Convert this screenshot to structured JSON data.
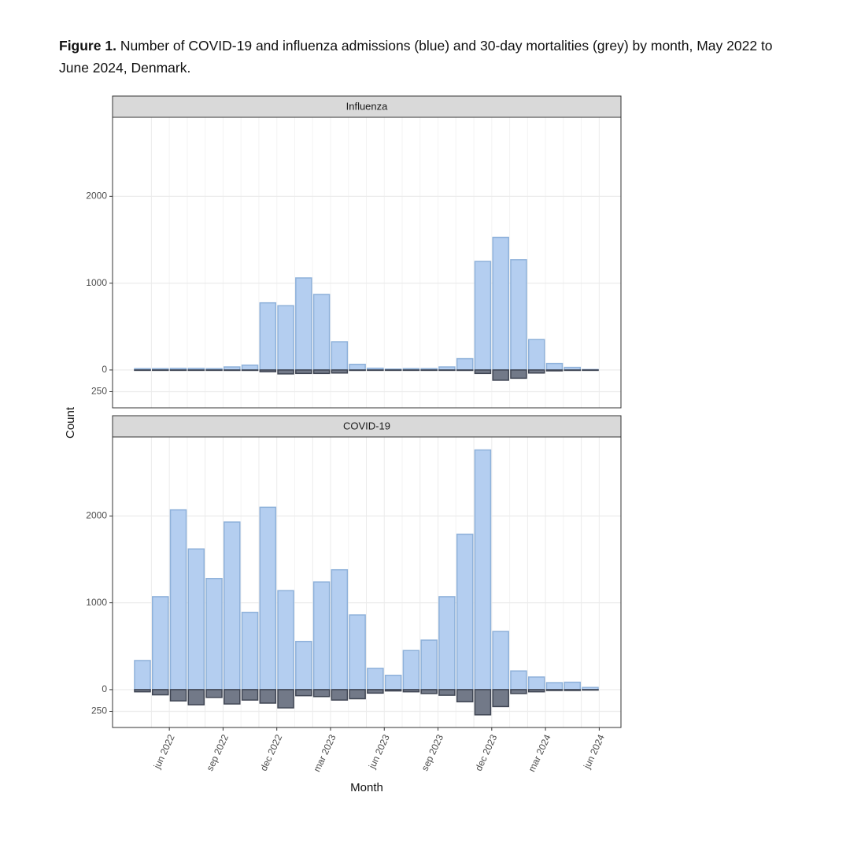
{
  "caption_label": "Figure 1.",
  "caption": "Number of COVID-19 and influenza admissions (blue) and 30-day mortalities (grey) by month, May 2022 to June 2024, Denmark.",
  "ylabel": "Count",
  "xlabel": "Month",
  "chart_data": [
    {
      "type": "bar",
      "title": "Influenza",
      "categories": [
        null,
        null,
        null,
        null,
        null,
        null,
        null,
        null,
        null,
        null,
        null,
        null,
        null,
        null,
        null,
        null,
        null,
        null,
        null,
        null,
        null,
        null,
        null,
        null,
        null,
        null
      ],
      "series": [
        {
          "color": "#b4cef0",
          "edgecolor": "#8eb1da",
          "values": [
            15,
            15,
            18,
            18,
            15,
            35,
            55,
            773,
            740,
            1060,
            870,
            325,
            65,
            20,
            10,
            15,
            15,
            35,
            130,
            1250,
            1527,
            1270,
            350,
            75,
            30,
            5
          ]
        },
        {
          "color": "#727988",
          "edgecolor": "#3f4553",
          "values": [
            -3,
            -3,
            -3,
            -3,
            -3,
            -5,
            -5,
            -20,
            -45,
            -40,
            -40,
            -35,
            -5,
            -3,
            -2,
            -2,
            -2,
            -3,
            -5,
            -40,
            -118,
            -95,
            -35,
            -10,
            -5,
            -2
          ]
        }
      ],
      "ylim": [
        -436,
        2910
      ],
      "yticks": [
        2000,
        1000,
        0,
        {
          "value": -250,
          "label": "250"
        }
      ],
      "grid": true
    },
    {
      "type": "bar",
      "title": "COVID-19",
      "categories": [
        null,
        "jun 2022",
        null,
        null,
        "sep 2022",
        null,
        null,
        "dec 2022",
        null,
        null,
        "mar 2023",
        null,
        null,
        "jun 2023",
        null,
        null,
        "sep 2023",
        null,
        null,
        "dec 2023",
        null,
        null,
        "mar 2024",
        null,
        null,
        "jun 2024"
      ],
      "series": [
        {
          "color": "#b4cef0",
          "edgecolor": "#8eb1da",
          "values": [
            335,
            1070,
            2070,
            1620,
            1280,
            1930,
            890,
            2100,
            1140,
            555,
            1240,
            1380,
            860,
            245,
            165,
            450,
            570,
            1070,
            1790,
            2760,
            670,
            215,
            145,
            80,
            85,
            25
          ]
        },
        {
          "color": "#727988",
          "edgecolor": "#3f4553",
          "values": [
            -25,
            -60,
            -130,
            -175,
            -90,
            -165,
            -120,
            -155,
            -210,
            -70,
            -80,
            -120,
            -105,
            -40,
            -15,
            -25,
            -45,
            -65,
            -140,
            -290,
            -195,
            -45,
            -25,
            -10,
            -10,
            -5
          ]
        }
      ],
      "ylim": [
        -436,
        2910
      ],
      "yticks": [
        2000,
        1000,
        0,
        {
          "value": -250,
          "label": "250"
        }
      ],
      "grid": true
    }
  ]
}
